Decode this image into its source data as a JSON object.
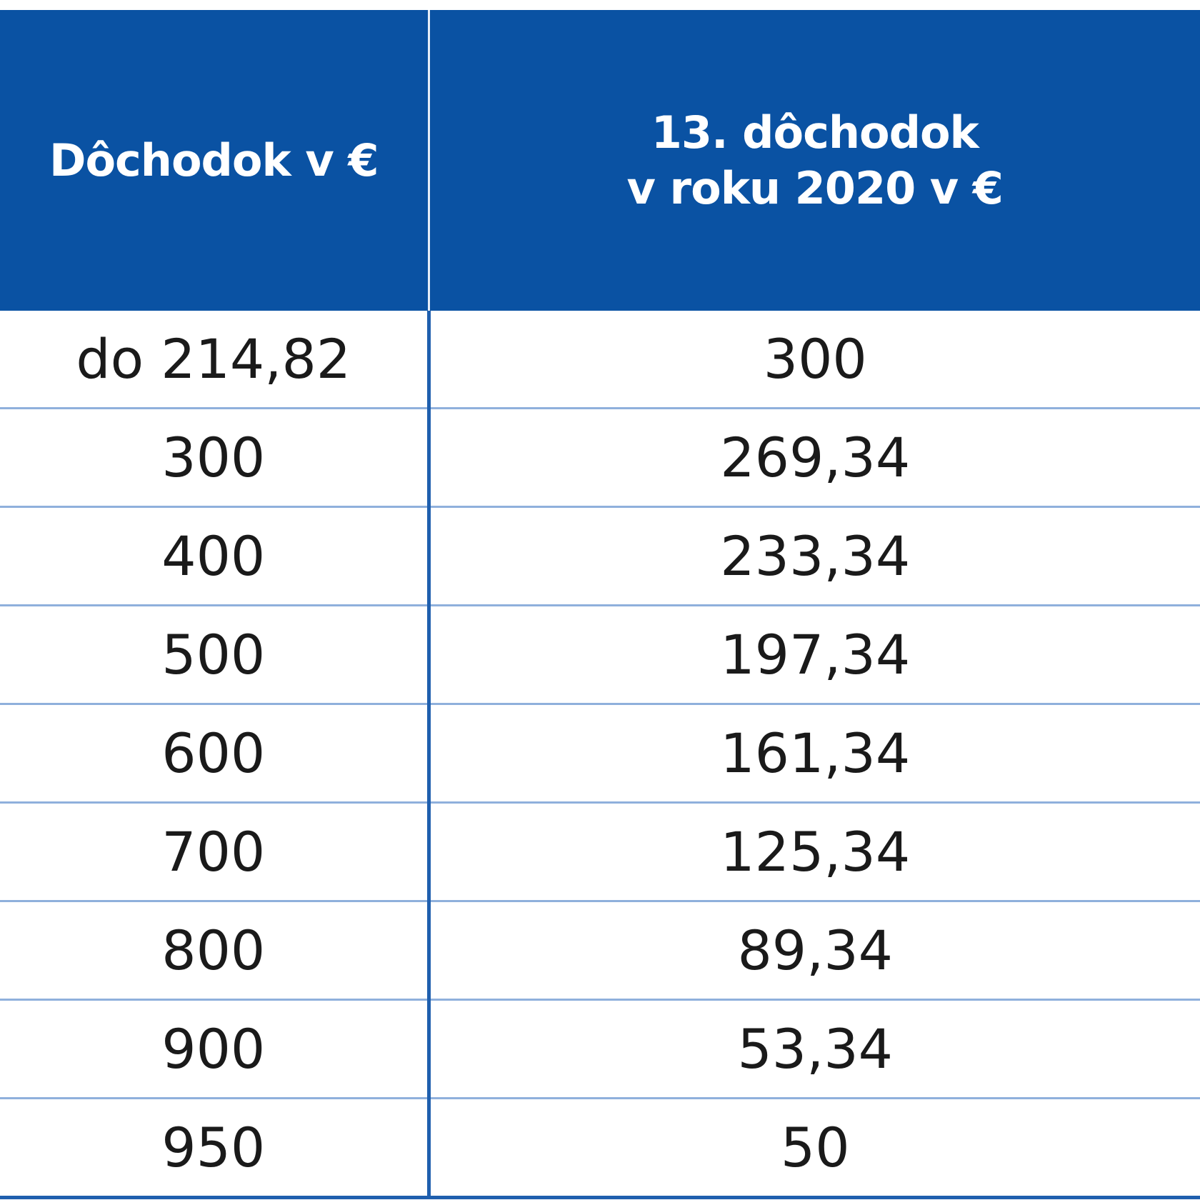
{
  "table": {
    "headers": {
      "col1": "Dôchodok v €",
      "col2_line1": "13. dôchodok",
      "col2_line2": "v roku 2020 v €"
    },
    "rows": [
      {
        "pension": "do 214,82",
        "thirteenth": "300"
      },
      {
        "pension": "300",
        "thirteenth": "269,34"
      },
      {
        "pension": "400",
        "thirteenth": "233,34"
      },
      {
        "pension": "500",
        "thirteenth": "197,34"
      },
      {
        "pension": "600",
        "thirteenth": "161,34"
      },
      {
        "pension": "700",
        "thirteenth": "125,34"
      },
      {
        "pension": "800",
        "thirteenth": "89,34"
      },
      {
        "pension": "900",
        "thirteenth": "53,34"
      },
      {
        "pension": "950",
        "thirteenth": "50"
      }
    ]
  },
  "colors": {
    "header_bg": "#0a52a3",
    "header_text": "#ffffff",
    "row_divider": "#8fb0dc",
    "column_divider": "#1f5fae"
  }
}
